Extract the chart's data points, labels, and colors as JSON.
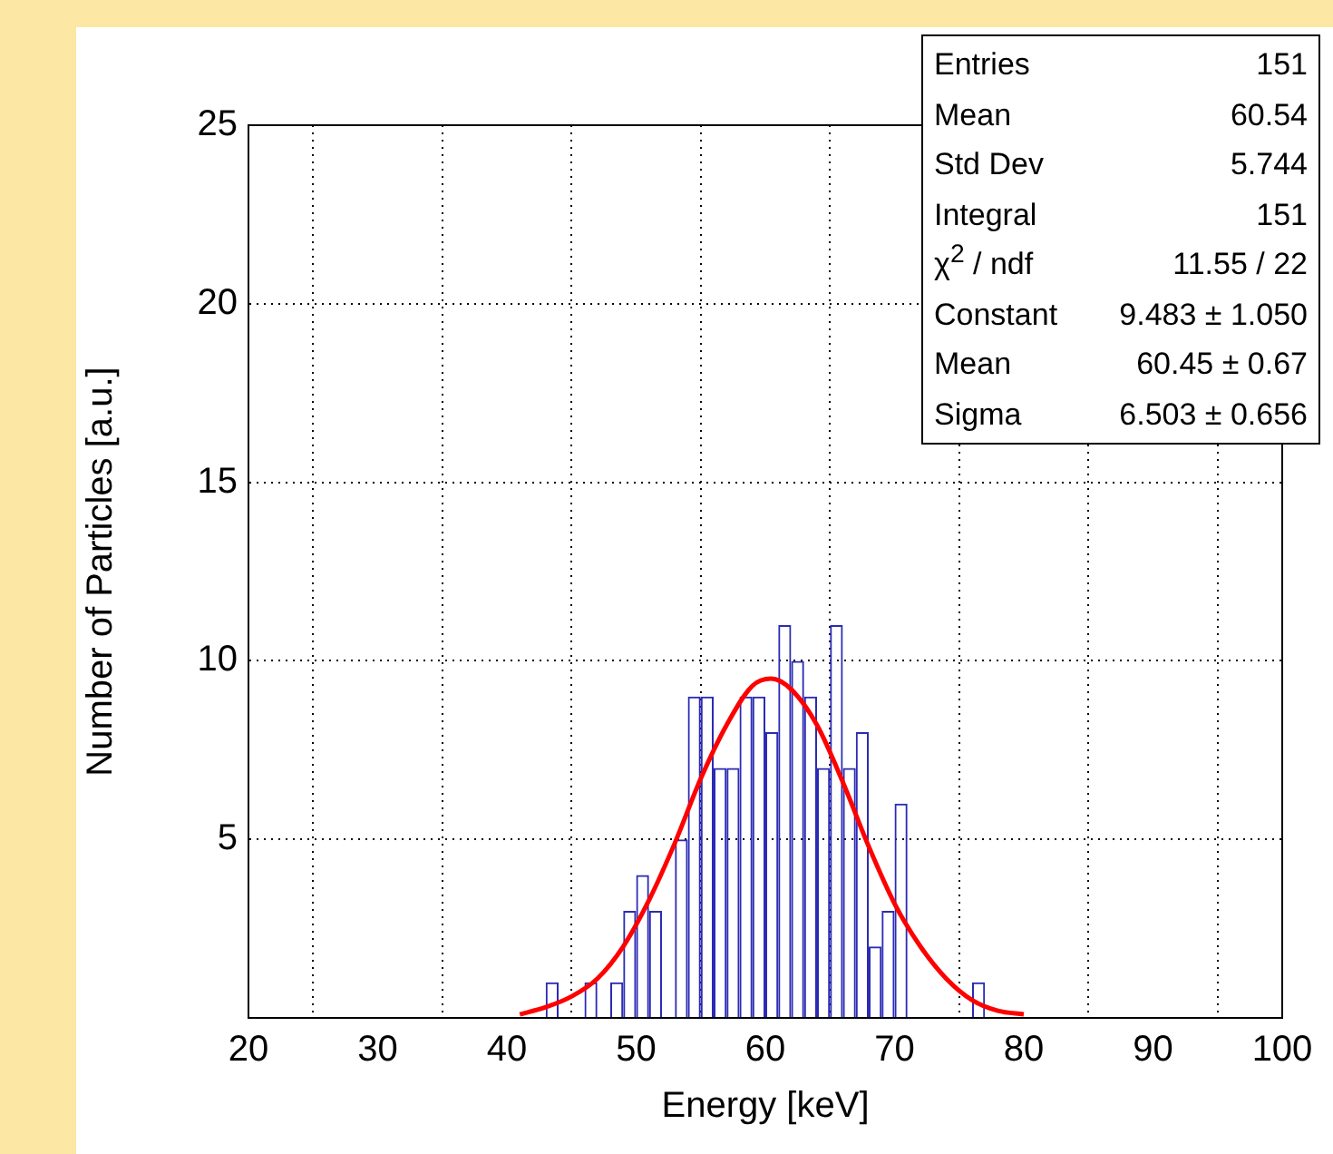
{
  "chart_data": {
    "type": "histogram",
    "xlabel": "Energy [keV]",
    "ylabel": "Number of Particles [a.u.]",
    "xlim": [
      20,
      100
    ],
    "xticks": [
      20,
      30,
      40,
      50,
      60,
      70,
      80,
      90,
      100
    ],
    "ylim": [
      0,
      25
    ],
    "yticks": [
      5,
      10,
      15,
      20,
      25
    ],
    "grid": true,
    "legend": false,
    "series": [
      {
        "type": "histogram",
        "color": "#2b2bb5",
        "bins": [
          43,
          44,
          45,
          46,
          47,
          48,
          49,
          50,
          51,
          52,
          53,
          54,
          55,
          56,
          57,
          58,
          59,
          60,
          61,
          62,
          63,
          64,
          65,
          66,
          67,
          68,
          69,
          70,
          71,
          72,
          73,
          74,
          75,
          76,
          77
        ],
        "values": [
          1,
          0,
          0,
          1,
          0,
          1,
          3,
          4,
          3,
          0,
          5,
          9,
          9,
          7,
          7,
          9,
          9,
          8,
          11,
          10,
          9,
          7,
          11,
          7,
          8,
          2,
          3,
          6,
          0,
          0,
          0,
          0,
          0,
          1
        ]
      },
      {
        "type": "line",
        "color": "#ff0000",
        "x": [
          41,
          43,
          45,
          47,
          49,
          51,
          53,
          55,
          57,
          59,
          60.45,
          62,
          64,
          66,
          68,
          70,
          72,
          74,
          76,
          78,
          80
        ],
        "values": [
          0.1,
          0.3,
          0.6,
          1.1,
          2.0,
          3.3,
          4.9,
          6.7,
          8.2,
          9.3,
          9.5,
          9.2,
          8.2,
          6.6,
          4.8,
          3.2,
          2.0,
          1.1,
          0.5,
          0.2,
          0.1
        ]
      }
    ],
    "annotations": [
      "Entries",
      "151",
      "Mean",
      "60.54",
      "Std Dev",
      "5.744",
      "Integral",
      "151",
      "χ$^{2}$ / ndf",
      "11.55 / 22",
      "Constant",
      "9.483 ± 1.050",
      "Mean",
      "60.45 ± 0.67",
      "Sigma",
      "6.503 ± 0.656"
    ]
  }
}
